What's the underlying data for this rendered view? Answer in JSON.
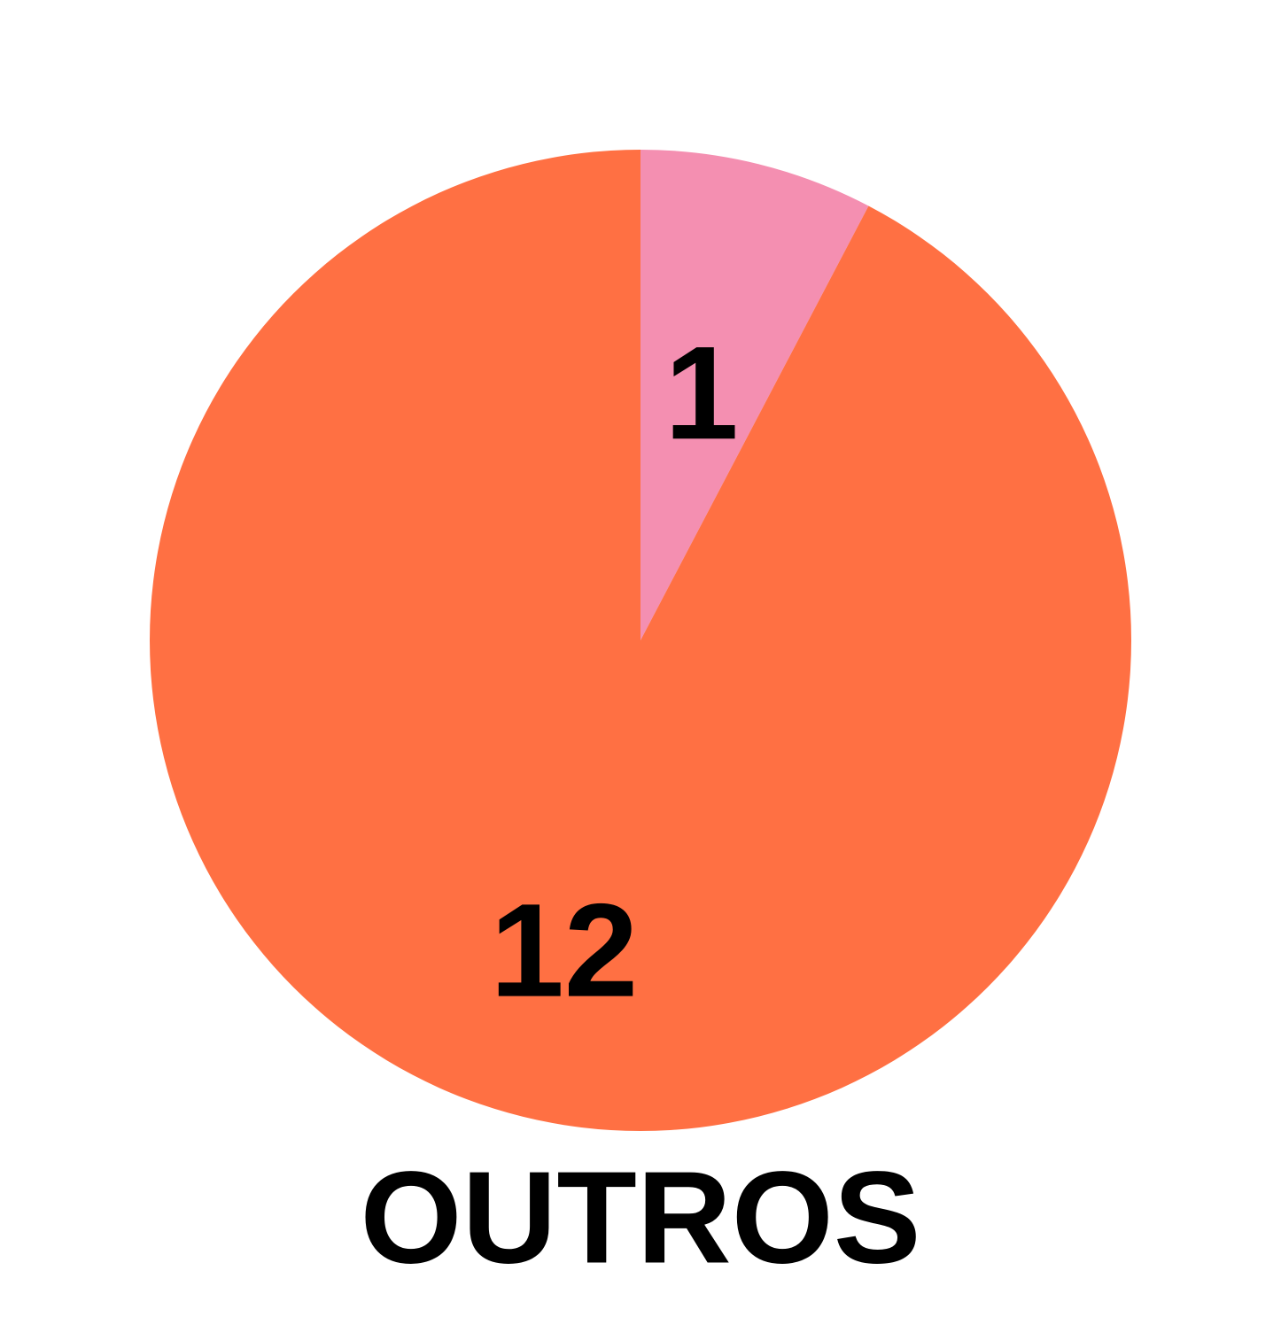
{
  "chart_data": {
    "type": "pie",
    "caption": "OUTROS",
    "start": "top",
    "direction": "clockwise",
    "slices": [
      {
        "value": 1,
        "label": "1",
        "color": "#F48FB1"
      },
      {
        "value": 12,
        "label": "12",
        "color": "#FF7043"
      }
    ]
  }
}
